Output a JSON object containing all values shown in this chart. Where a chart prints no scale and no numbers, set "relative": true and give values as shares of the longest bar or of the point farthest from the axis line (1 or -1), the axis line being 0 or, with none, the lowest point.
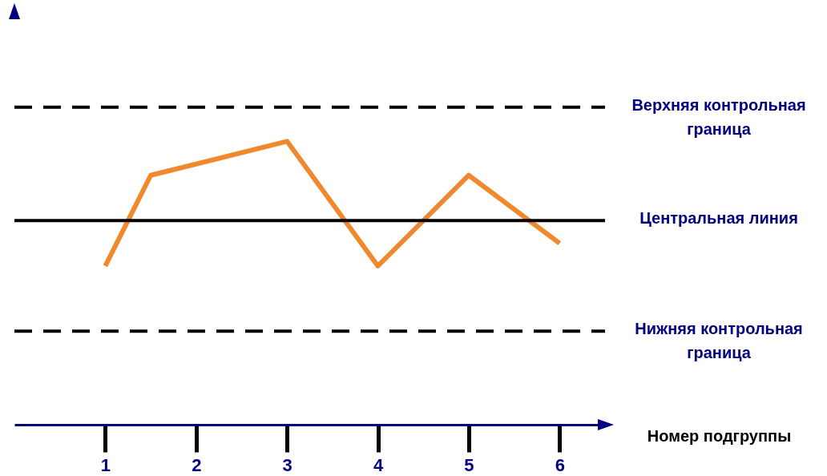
{
  "chart_data": {
    "type": "line",
    "relative": true,
    "xlabel": "Номер подгруппы",
    "x": [
      1,
      1.5,
      3,
      4,
      5,
      6
    ],
    "xlim": [
      0,
      6.5
    ],
    "xticks": [
      1,
      2,
      3,
      4,
      5,
      6
    ],
    "tick_labels": "x",
    "grid": false,
    "marker": "none",
    "line_style": "solid",
    "series": [
      {
        "color": "#f0892e",
        "values": [
          0.56,
          0.88,
          1,
          0.56,
          0.88,
          0.64
        ]
      }
    ],
    "ref_lines": [
      {
        "axis": "y",
        "value": 1.12,
        "label": "Верхняя контрольная граница",
        "color": "#000000",
        "line_style": "dashed"
      },
      {
        "axis": "y",
        "value": 0.72,
        "label": "Центральная линия",
        "color": "#000000",
        "line_style": "solid"
      },
      {
        "axis": "y",
        "value": 0.33,
        "label": "Нижняя контрольная граница",
        "color": "#000000",
        "line_style": "dashed"
      }
    ]
  }
}
